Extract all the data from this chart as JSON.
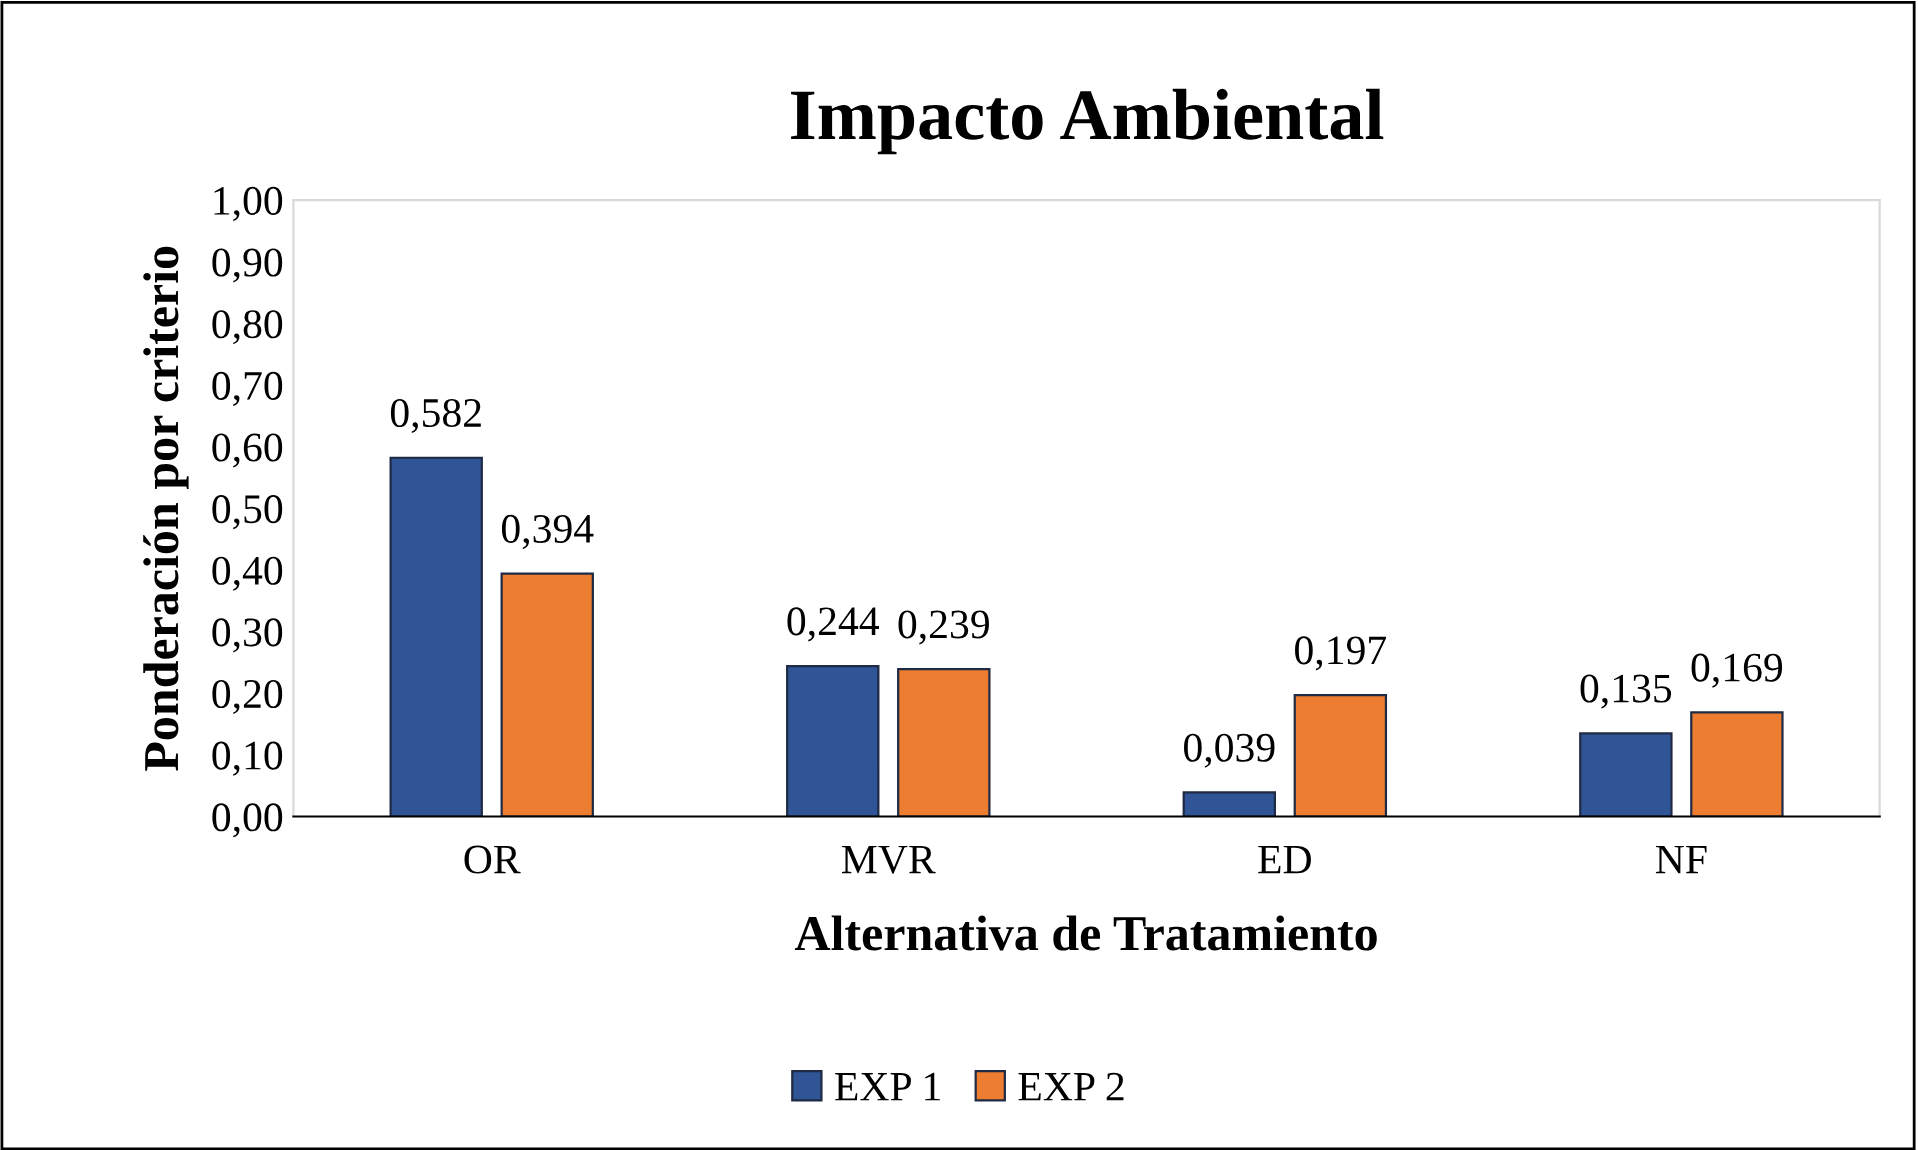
{
  "chart_data": {
    "type": "bar",
    "title": "Impacto Ambiental",
    "xlabel": "Alternativa de Tratamiento",
    "ylabel": "Ponderación por criterio",
    "categories": [
      "OR",
      "MVR",
      "ED",
      "NF"
    ],
    "series": [
      {
        "name": "EXP 1",
        "color": "#2f5597",
        "values": [
          0.582,
          0.244,
          0.039,
          0.135
        ],
        "value_labels": [
          "0,582",
          "0,244",
          "0,039",
          "0,135"
        ]
      },
      {
        "name": "EXP 2",
        "color": "#ed7d31",
        "values": [
          0.394,
          0.239,
          0.197,
          0.169
        ],
        "value_labels": [
          "0,394",
          "0,239",
          "0,197",
          "0,169"
        ]
      }
    ],
    "ylim": [
      0,
      1
    ],
    "yticks": [
      {
        "value": 0,
        "label": "0,00"
      },
      {
        "value": 0.1,
        "label": "0,10"
      },
      {
        "value": 0.2,
        "label": "0,20"
      },
      {
        "value": 0.3,
        "label": "0,30"
      },
      {
        "value": 0.4,
        "label": "0,40"
      },
      {
        "value": 0.5,
        "label": "0,50"
      },
      {
        "value": 0.6,
        "label": "0,60"
      },
      {
        "value": 0.7,
        "label": "0,70"
      },
      {
        "value": 0.8,
        "label": "0,80"
      },
      {
        "value": 0.9,
        "label": "0,90"
      },
      {
        "value": 1,
        "label": "1,00"
      }
    ],
    "grid": false,
    "legend": "bottom"
  }
}
